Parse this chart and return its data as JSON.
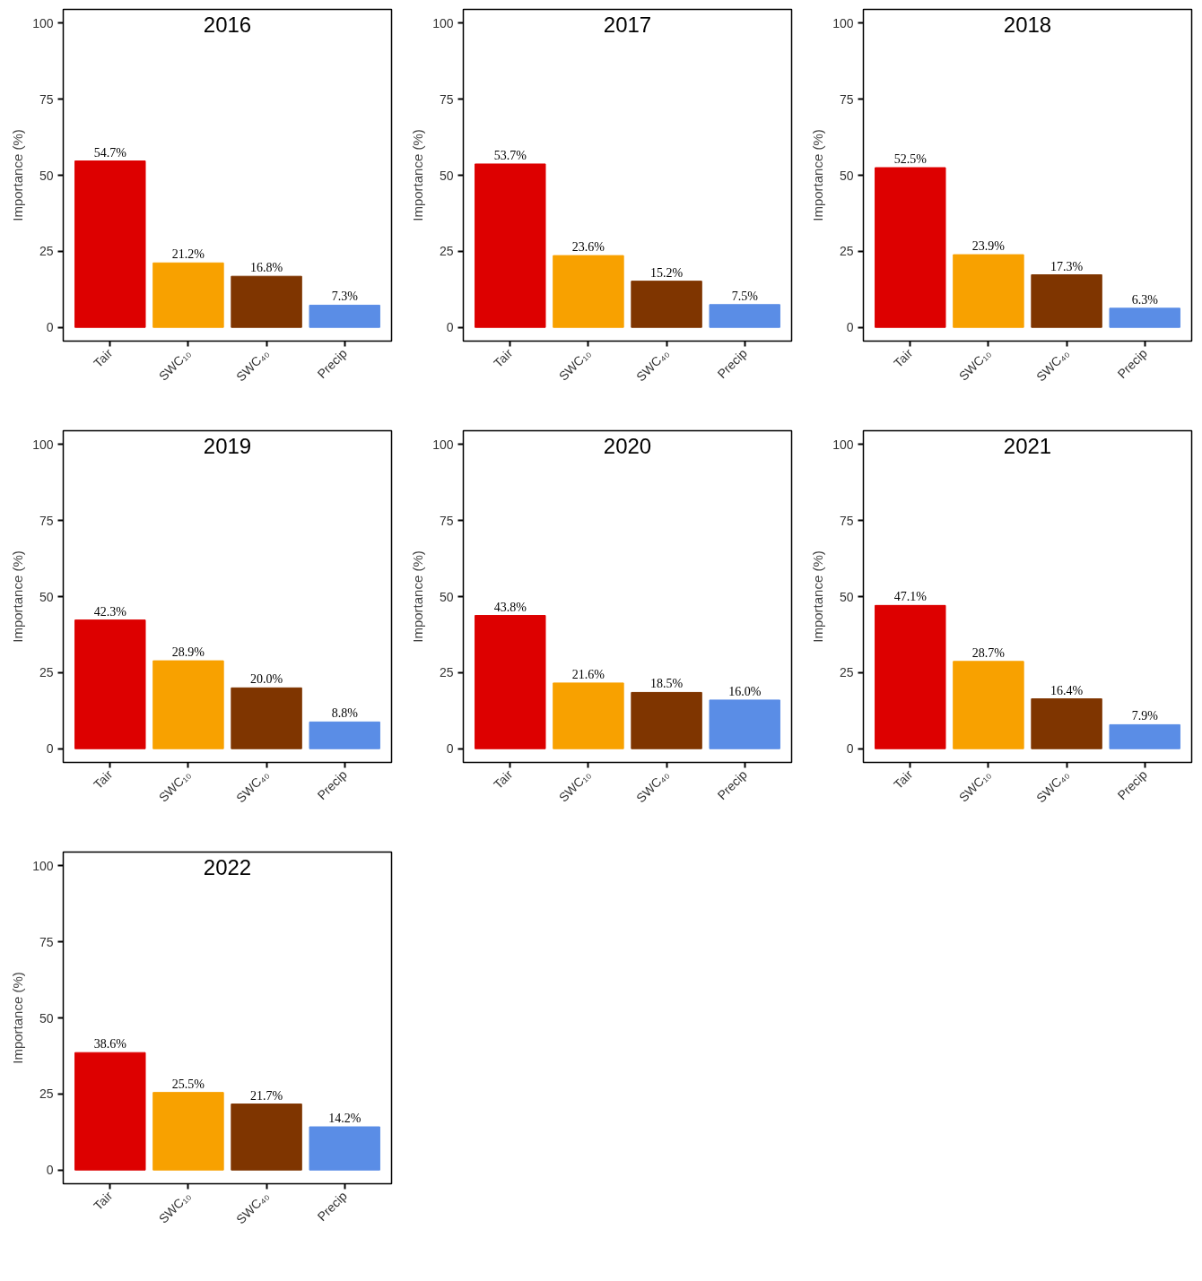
{
  "chart_data": [
    {
      "type": "bar",
      "title": "2016",
      "ylabel": "Importance (%)",
      "categories": [
        "Tair",
        "SWC₁₀",
        "SWC₄₀",
        "Precip"
      ],
      "values": [
        54.7,
        21.2,
        16.8,
        7.3
      ],
      "value_labels": [
        "54.7%",
        "21.2%",
        "16.8%",
        "7.3%"
      ],
      "colors": [
        "#dd0000",
        "#f8a100",
        "#7f3500",
        "#5a8de6"
      ],
      "ylim": [
        -4.5,
        104.5
      ],
      "yticks": [
        0,
        25,
        50,
        75,
        100
      ]
    },
    {
      "type": "bar",
      "title": "2017",
      "ylabel": "Importance (%)",
      "categories": [
        "Tair",
        "SWC₁₀",
        "SWC₄₀",
        "Precip"
      ],
      "values": [
        53.7,
        23.6,
        15.2,
        7.5
      ],
      "value_labels": [
        "53.7%",
        "23.6%",
        "15.2%",
        "7.5%"
      ],
      "colors": [
        "#dd0000",
        "#f8a100",
        "#7f3500",
        "#5a8de6"
      ],
      "ylim": [
        -4.5,
        104.5
      ],
      "yticks": [
        0,
        25,
        50,
        75,
        100
      ]
    },
    {
      "type": "bar",
      "title": "2018",
      "ylabel": "Importance (%)",
      "categories": [
        "Tair",
        "SWC₁₀",
        "SWC₄₀",
        "Precip"
      ],
      "values": [
        52.5,
        23.9,
        17.3,
        6.3
      ],
      "value_labels": [
        "52.5%",
        "23.9%",
        "17.3%",
        "6.3%"
      ],
      "colors": [
        "#dd0000",
        "#f8a100",
        "#7f3500",
        "#5a8de6"
      ],
      "ylim": [
        -4.5,
        104.5
      ],
      "yticks": [
        0,
        25,
        50,
        75,
        100
      ]
    },
    {
      "type": "bar",
      "title": "2019",
      "ylabel": "Importance (%)",
      "categories": [
        "Tair",
        "SWC₁₀",
        "SWC₄₀",
        "Precip"
      ],
      "values": [
        42.3,
        28.9,
        20.0,
        8.8
      ],
      "value_labels": [
        "42.3%",
        "28.9%",
        "20.0%",
        "8.8%"
      ],
      "colors": [
        "#dd0000",
        "#f8a100",
        "#7f3500",
        "#5a8de6"
      ],
      "ylim": [
        -4.5,
        104.5
      ],
      "yticks": [
        0,
        25,
        50,
        75,
        100
      ]
    },
    {
      "type": "bar",
      "title": "2020",
      "ylabel": "Importance (%)",
      "categories": [
        "Tair",
        "SWC₁₀",
        "SWC₄₀",
        "Precip"
      ],
      "values": [
        43.8,
        21.6,
        18.5,
        16.0
      ],
      "value_labels": [
        "43.8%",
        "21.6%",
        "18.5%",
        "16.0%"
      ],
      "colors": [
        "#dd0000",
        "#f8a100",
        "#7f3500",
        "#5a8de6"
      ],
      "ylim": [
        -4.5,
        104.5
      ],
      "yticks": [
        0,
        25,
        50,
        75,
        100
      ]
    },
    {
      "type": "bar",
      "title": "2021",
      "ylabel": "Importance (%)",
      "categories": [
        "Tair",
        "SWC₁₀",
        "SWC₄₀",
        "Precip"
      ],
      "values": [
        47.1,
        28.7,
        16.4,
        7.9
      ],
      "value_labels": [
        "47.1%",
        "28.7%",
        "16.4%",
        "7.9%"
      ],
      "colors": [
        "#dd0000",
        "#f8a100",
        "#7f3500",
        "#5a8de6"
      ],
      "ylim": [
        -4.5,
        104.5
      ],
      "yticks": [
        0,
        25,
        50,
        75,
        100
      ]
    },
    {
      "type": "bar",
      "title": "2022",
      "ylabel": "Importance (%)",
      "categories": [
        "Tair",
        "SWC₁₀",
        "SWC₄₀",
        "Precip"
      ],
      "values": [
        38.6,
        25.5,
        21.7,
        14.2
      ],
      "value_labels": [
        "38.6%",
        "25.5%",
        "21.7%",
        "14.2%"
      ],
      "colors": [
        "#dd0000",
        "#f8a100",
        "#7f3500",
        "#5a8de6"
      ],
      "ylim": [
        -4.5,
        104.5
      ],
      "yticks": [
        0,
        25,
        50,
        75,
        100
      ]
    }
  ]
}
